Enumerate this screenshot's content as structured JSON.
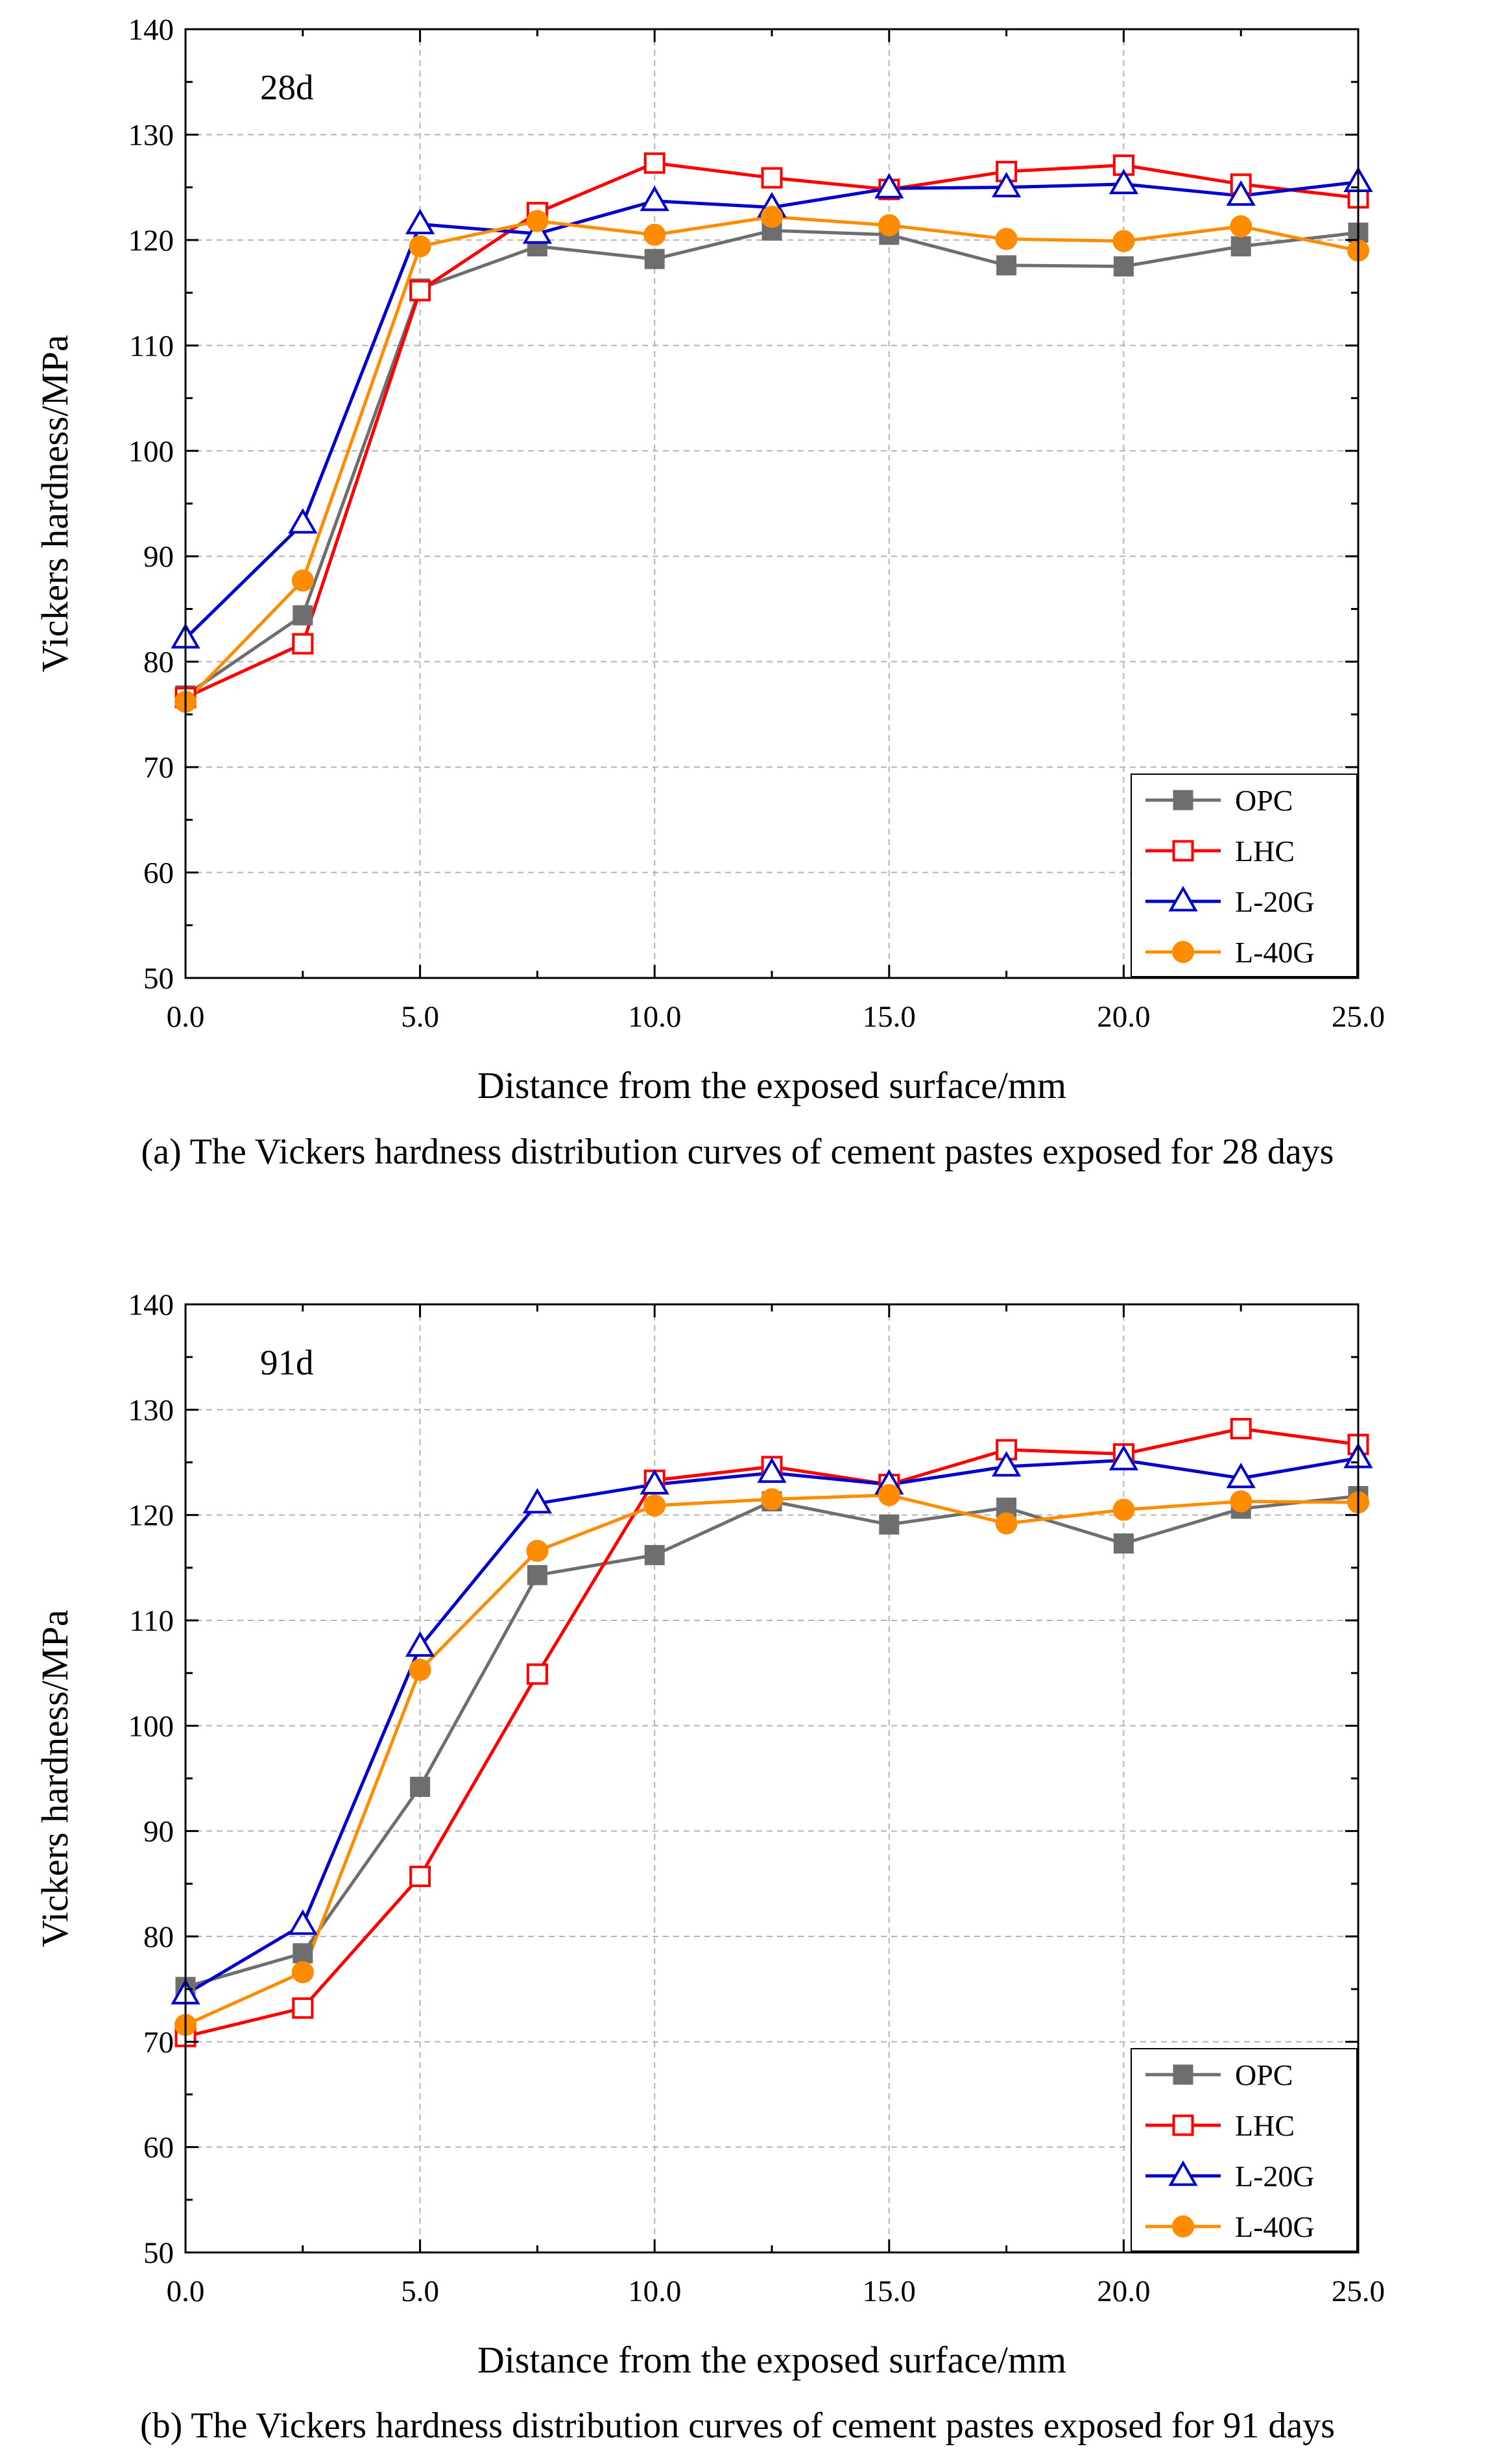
{
  "colors": {
    "OPC": "#6e6e6e",
    "LHC": "#ff0000",
    "L-20G": "#0000cc",
    "L-40G": "#ff8c00",
    "grid": "#b3b3b3",
    "axis": "#000000"
  },
  "chart_data": [
    {
      "type": "line",
      "panel_label": "28d",
      "caption": "(a) The Vickers hardness distribution curves of cement pastes exposed for 28 days",
      "xlabel": "Distance from the exposed surface/mm",
      "ylabel": "Vickers hardness/MPa",
      "xlim": [
        0,
        25
      ],
      "ylim": [
        50,
        140
      ],
      "xticks": [
        "0.0",
        "5.0",
        "10.0",
        "15.0",
        "20.0",
        "25.0"
      ],
      "yticks": [
        "50",
        "60",
        "70",
        "80",
        "90",
        "100",
        "110",
        "120",
        "130",
        "140"
      ],
      "grid": true,
      "legend_position": "bottom-right",
      "x": [
        0,
        2.5,
        5,
        7.5,
        10,
        12.5,
        15,
        17.5,
        20,
        22.5,
        25
      ],
      "series": [
        {
          "name": "OPC",
          "marker": "filled-square",
          "values": [
            76.8,
            84.4,
            115.4,
            119.4,
            118.2,
            120.9,
            120.5,
            117.6,
            117.5,
            119.4,
            120.7
          ]
        },
        {
          "name": "LHC",
          "marker": "open-square",
          "values": [
            76.6,
            81.7,
            115.2,
            122.6,
            127.3,
            125.9,
            124.8,
            126.5,
            127.1,
            125.3,
            124.0
          ]
        },
        {
          "name": "L-20G",
          "marker": "open-triangle",
          "values": [
            82.2,
            93.1,
            121.5,
            120.6,
            123.7,
            123.1,
            124.9,
            125.0,
            125.3,
            124.2,
            125.5
          ]
        },
        {
          "name": "L-40G",
          "marker": "filled-circle",
          "values": [
            76.2,
            87.7,
            119.4,
            121.8,
            120.5,
            122.2,
            121.4,
            120.1,
            119.9,
            121.3,
            119.0
          ]
        }
      ]
    },
    {
      "type": "line",
      "panel_label": "91d",
      "caption": "(b) The Vickers hardness distribution curves of cement pastes exposed for 91 days",
      "xlabel": "Distance from the exposed surface/mm",
      "ylabel": "Vickers hardness/MPa",
      "xlim": [
        0,
        25
      ],
      "ylim": [
        50,
        140
      ],
      "xticks": [
        "0.0",
        "5.0",
        "10.0",
        "15.0",
        "20.0",
        "25.0"
      ],
      "yticks": [
        "50",
        "60",
        "70",
        "80",
        "90",
        "100",
        "110",
        "120",
        "130",
        "140"
      ],
      "grid": true,
      "legend_position": "bottom-right",
      "x": [
        0,
        2.5,
        5,
        7.5,
        10,
        12.5,
        15,
        17.5,
        20,
        22.5,
        25
      ],
      "series": [
        {
          "name": "OPC",
          "marker": "filled-square",
          "values": [
            75.2,
            78.4,
            94.2,
            114.3,
            116.2,
            121.3,
            119.1,
            120.7,
            117.3,
            120.6,
            121.8
          ]
        },
        {
          "name": "LHC",
          "marker": "open-square",
          "values": [
            70.5,
            73.2,
            85.7,
            104.9,
            123.3,
            124.6,
            122.9,
            126.2,
            125.8,
            128.2,
            126.7
          ]
        },
        {
          "name": "L-20G",
          "marker": "open-triangle",
          "values": [
            74.5,
            81.1,
            107.5,
            121.1,
            122.9,
            124.0,
            122.9,
            124.6,
            125.2,
            123.5,
            125.4
          ]
        },
        {
          "name": "L-40G",
          "marker": "filled-circle",
          "values": [
            71.6,
            76.6,
            105.3,
            116.6,
            120.9,
            121.5,
            121.9,
            119.2,
            120.5,
            121.3,
            121.2
          ]
        }
      ]
    }
  ]
}
